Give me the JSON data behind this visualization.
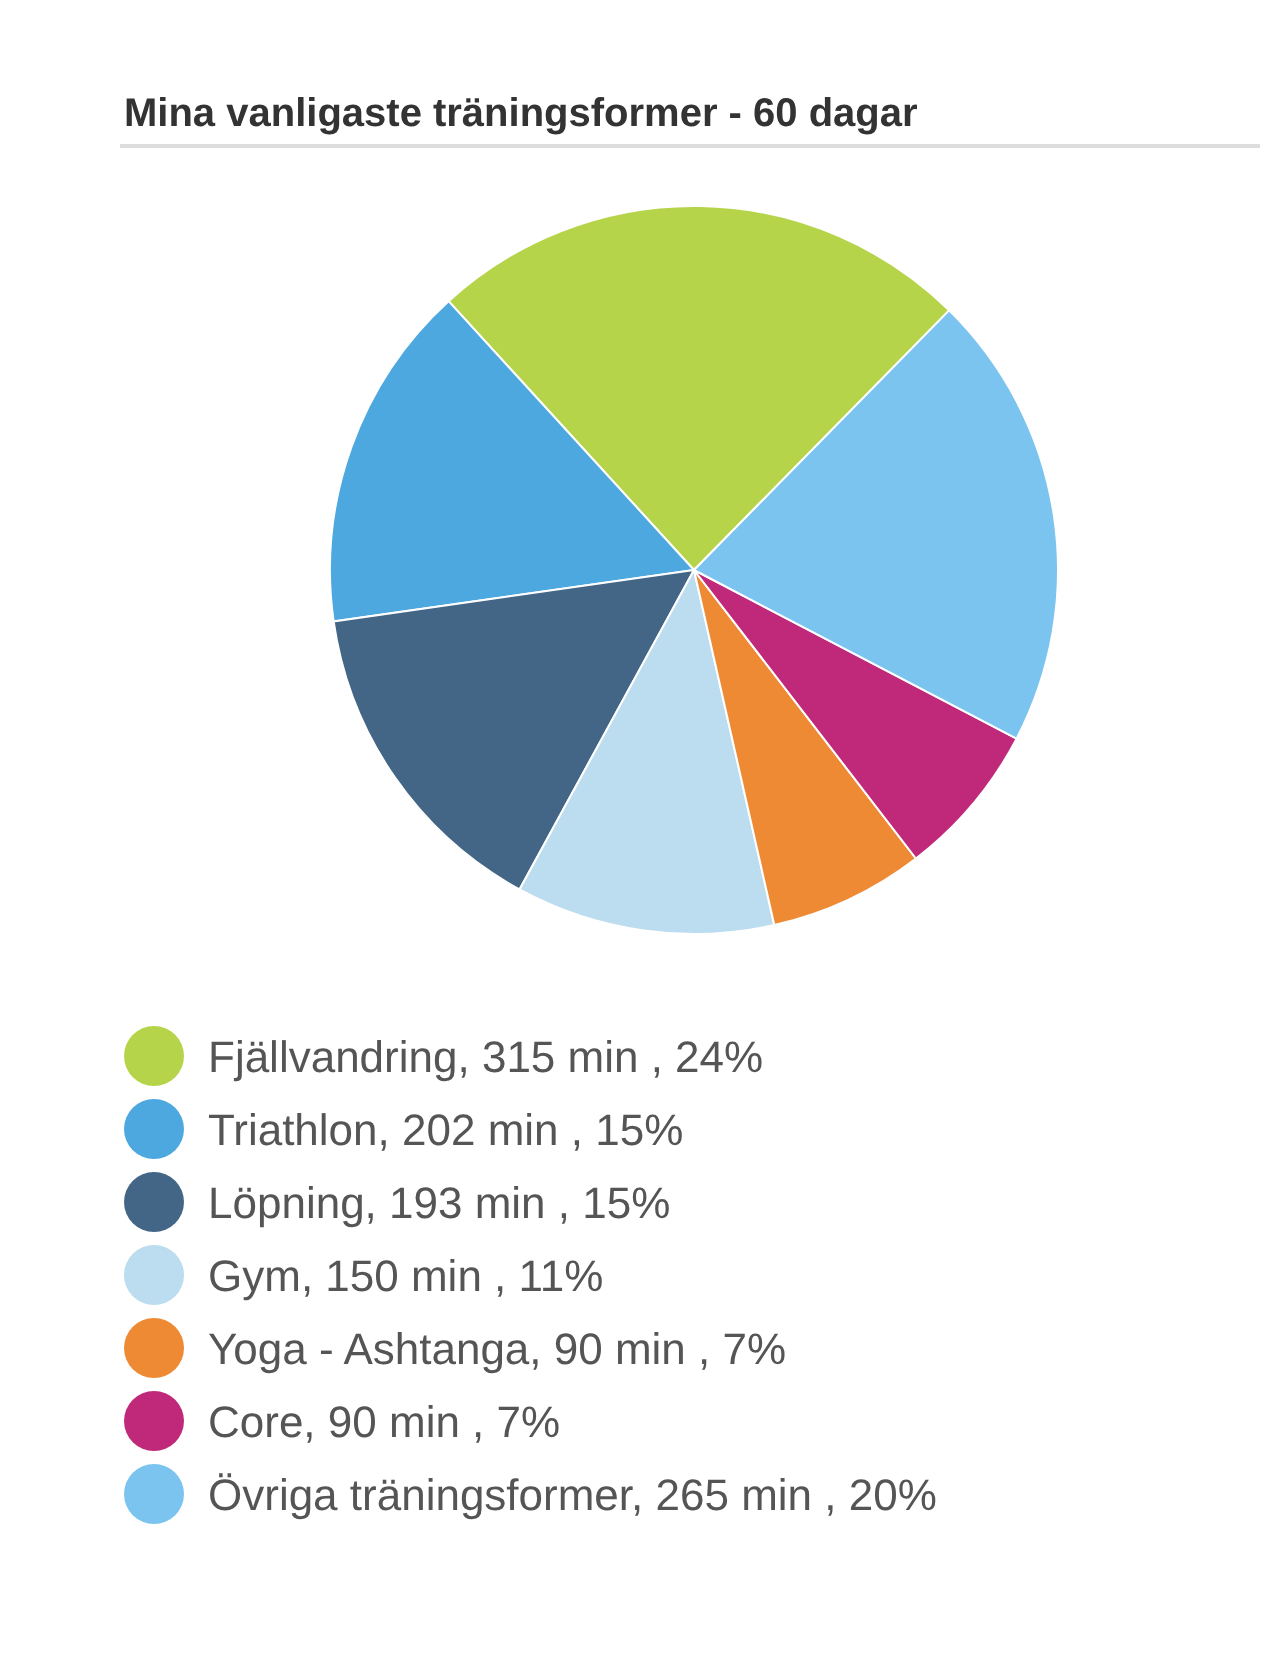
{
  "chart_data": {
    "type": "pie",
    "title": "Mina vanligaste träningsformer - 60 dagar",
    "categories": [
      "Fjällvandring, 315 min , 24%",
      "Triathlon, 202 min , 15%",
      "Löpning, 193 min , 15%",
      "Gym, 150 min , 11%",
      "Yoga - Ashtanga, 90 min , 7%",
      "Core, 90 min , 7%",
      "Övriga träningsformer, 265 min , 20%"
    ],
    "values": [
      315,
      202,
      193,
      150,
      90,
      90,
      265
    ],
    "colors": [
      "#b5d44a",
      "#4ea8e0",
      "#436687",
      "#bcdcef",
      "#ee8a33",
      "#c0297a",
      "#7cc4f0"
    ],
    "legend": "bottom"
  }
}
